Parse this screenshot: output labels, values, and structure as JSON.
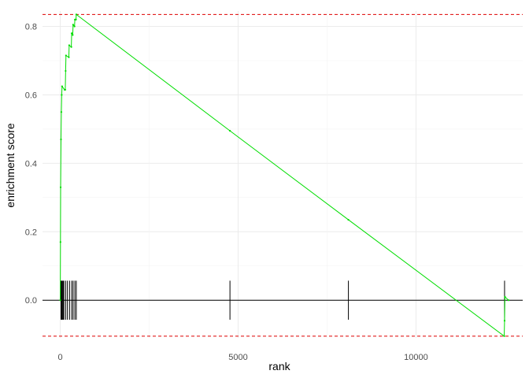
{
  "chart_data": {
    "type": "line",
    "title": "",
    "xlabel": "rank",
    "ylabel": "enrichment score",
    "xlim": [
      -500,
      13000
    ],
    "ylim": [
      -0.11,
      0.845
    ],
    "xticks": [
      0,
      5000,
      10000
    ],
    "xtick_labels": [
      "0",
      "5000",
      "10000"
    ],
    "yticks": [
      0.0,
      0.2,
      0.4,
      0.6,
      0.8
    ],
    "ytick_labels": [
      "0.0",
      "0.2",
      "0.4",
      "0.6",
      "0.8"
    ],
    "grid": true,
    "legend": "none",
    "max_es": 0.835,
    "min_es": -0.105,
    "colors": {
      "curve": "#00dd00",
      "extreme_lines": "#dd0000",
      "hits": "#000000",
      "zero_line": "#000000",
      "grid": "#ebebeb"
    },
    "series": [
      {
        "points": [
          [
            0,
            0.0
          ],
          [
            5,
            0.17
          ],
          [
            10,
            0.33
          ],
          [
            20,
            0.47
          ],
          [
            30,
            0.55
          ],
          [
            40,
            0.6
          ],
          [
            50,
            0.625
          ],
          [
            120,
            0.615
          ],
          [
            140,
            0.615
          ],
          [
            150,
            0.67
          ],
          [
            160,
            0.715
          ],
          [
            240,
            0.71
          ],
          [
            250,
            0.745
          ],
          [
            310,
            0.74
          ],
          [
            320,
            0.78
          ],
          [
            350,
            0.775
          ],
          [
            360,
            0.805
          ],
          [
            400,
            0.8
          ],
          [
            410,
            0.82
          ],
          [
            440,
            0.82
          ],
          [
            450,
            0.835
          ],
          [
            4770,
            0.495
          ],
          [
            8100,
            0.235
          ],
          [
            12480,
            -0.105
          ],
          [
            12490,
            -0.06
          ],
          [
            12500,
            0.01
          ],
          [
            12600,
            0.0
          ]
        ]
      }
    ],
    "hits": [
      20,
      40,
      60,
      80,
      100,
      150,
      200,
      260,
      320,
      360,
      410,
      450,
      4770,
      8100,
      12490
    ],
    "hit_bar_range": [
      -0.057,
      0.057
    ]
  }
}
